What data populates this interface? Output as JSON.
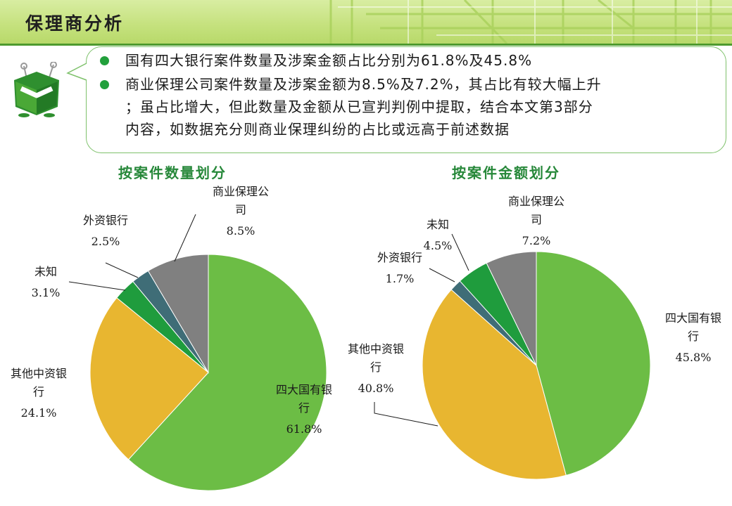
{
  "header": {
    "title": "保理商分析"
  },
  "bullets": [
    {
      "text": "国有四大银行案件数量及涉案金额占比分别为61.8%及45.8%"
    },
    {
      "lines": [
        "商业保理公司案件数量及涉案金额为8.5%及7.2%，其占比有较大幅上升",
        "；虽占比增大，但此数量及金额从已宣判判例中提取，结合本文第3部分",
        "内容，如数据充分则商业保理纠纷的占比或远高于前述数据"
      ]
    }
  ],
  "colors": {
    "四大国有银行": "#6cbd45",
    "其他中资银行": "#e8b630",
    "未知": "#1f9c3d",
    "外资银行": "#3f6d77",
    "商业保理公司": "#808080"
  },
  "chart_data": [
    {
      "type": "pie",
      "title": "按案件数量划分",
      "labels": [
        "四大国有银行",
        "其他中资银行",
        "未知",
        "外资银行",
        "商业保理公司"
      ],
      "display_labels": [
        [
          "四大国有银",
          "行"
        ],
        [
          "其他中资银",
          "行"
        ],
        [
          "未知"
        ],
        [
          "外资银行"
        ],
        [
          "商业保理公",
          "司"
        ]
      ],
      "values": [
        61.8,
        24.1,
        3.1,
        2.5,
        8.5
      ],
      "value_labels": [
        "61.8%",
        "24.1%",
        "3.1%",
        "2.5%",
        "8.5%"
      ]
    },
    {
      "type": "pie",
      "title": "按案件金额划分",
      "labels": [
        "四大国有银行",
        "其他中资银行",
        "外资银行",
        "未知",
        "商业保理公司"
      ],
      "display_labels": [
        [
          "四大国有银",
          "行"
        ],
        [
          "其他中资银",
          "行"
        ],
        [
          "外资银行"
        ],
        [
          "未知"
        ],
        [
          "商业保理公",
          "司"
        ]
      ],
      "values": [
        45.8,
        40.8,
        1.7,
        4.5,
        7.2
      ],
      "value_labels": [
        "45.8%",
        "40.8%",
        "1.7%",
        "4.5%",
        "7.2%"
      ]
    }
  ]
}
